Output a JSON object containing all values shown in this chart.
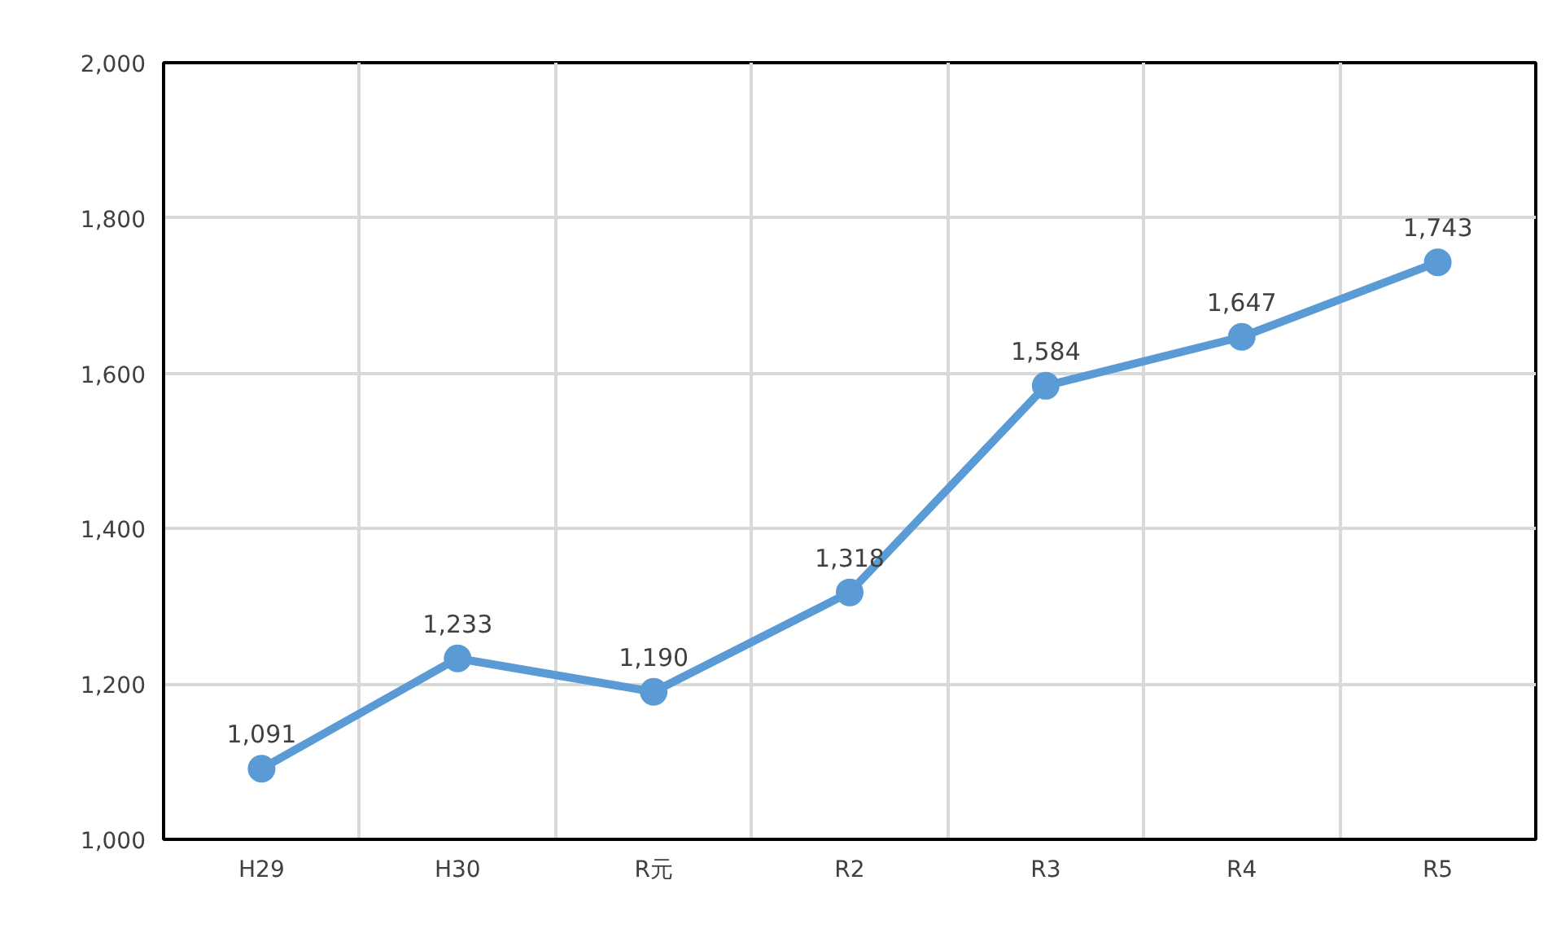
{
  "chart_data": {
    "type": "line",
    "categories": [
      "H29",
      "H30",
      "R元",
      "R2",
      "R3",
      "R4",
      "R5"
    ],
    "series": [
      {
        "color": "#5b9bd5",
        "values": [
          1091,
          1233,
          1190,
          1318,
          1584,
          1647,
          1743
        ],
        "value_labels": [
          "1,091",
          "1,233",
          "1,190",
          "1,318",
          "1,584",
          "1,647",
          "1,743"
        ]
      }
    ],
    "ylim": [
      1000,
      2000
    ],
    "yticks": [
      {
        "value": 1000,
        "label": "1,000"
      },
      {
        "value": 1200,
        "label": "1,200"
      },
      {
        "value": 1400,
        "label": "1,400"
      },
      {
        "value": 1600,
        "label": "1,600"
      },
      {
        "value": 1800,
        "label": "1,800"
      },
      {
        "value": 2000,
        "label": "2,000"
      }
    ],
    "grid": true,
    "marker": "circle",
    "line_style": "solid"
  }
}
